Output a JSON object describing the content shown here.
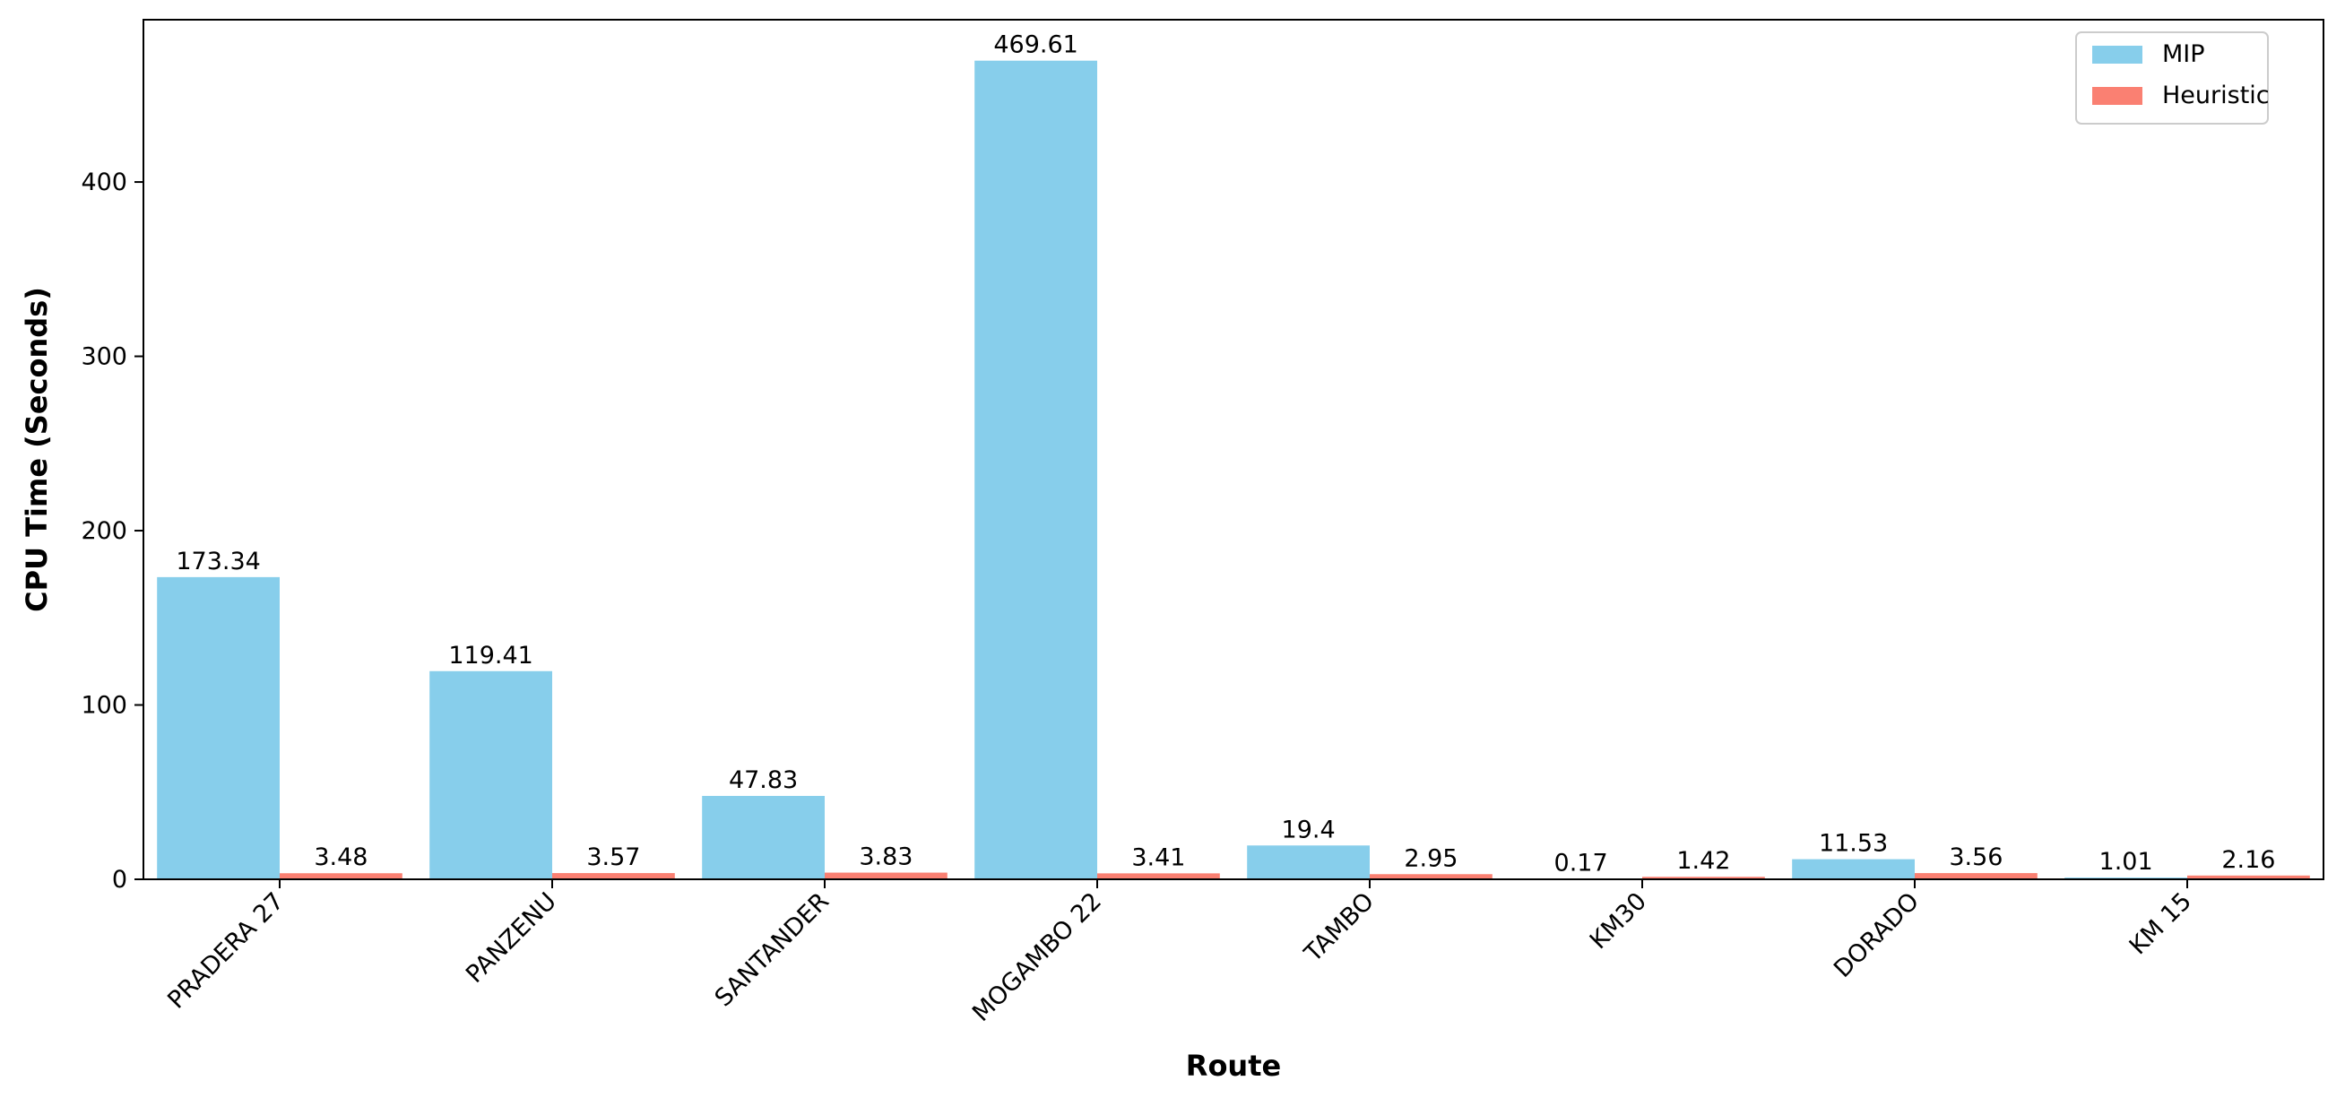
{
  "chart_data": {
    "type": "bar",
    "xlabel": "Route",
    "ylabel": "CPU Time (Seconds)",
    "categories": [
      "PRADERA 27",
      "PANZENU",
      "SANTANDER",
      "MOGAMBO 22",
      "TAMBO",
      "KM30",
      "DORADO",
      "KM 15"
    ],
    "series": [
      {
        "name": "MIP",
        "values": [
          173.34,
          119.41,
          47.83,
          469.61,
          19.4,
          0.17,
          11.53,
          1.01
        ],
        "color": "#87ceeb"
      },
      {
        "name": "Heuristic",
        "values": [
          3.48,
          3.57,
          3.83,
          3.41,
          2.95,
          1.42,
          3.56,
          2.16
        ],
        "color": "#fa8072"
      }
    ],
    "ylim": [
      0,
      493.1
    ],
    "yticks": [
      0,
      100,
      200,
      300,
      400
    ],
    "value_labels": [
      [
        "173.34",
        "119.41",
        "47.83",
        "469.61",
        "19.4",
        "0.17",
        "11.53",
        "1.01"
      ],
      [
        "3.48",
        "3.57",
        "3.83",
        "3.41",
        "2.95",
        "1.42",
        "3.56",
        "2.16"
      ]
    ],
    "legend_position": "top-right",
    "grid": false
  }
}
